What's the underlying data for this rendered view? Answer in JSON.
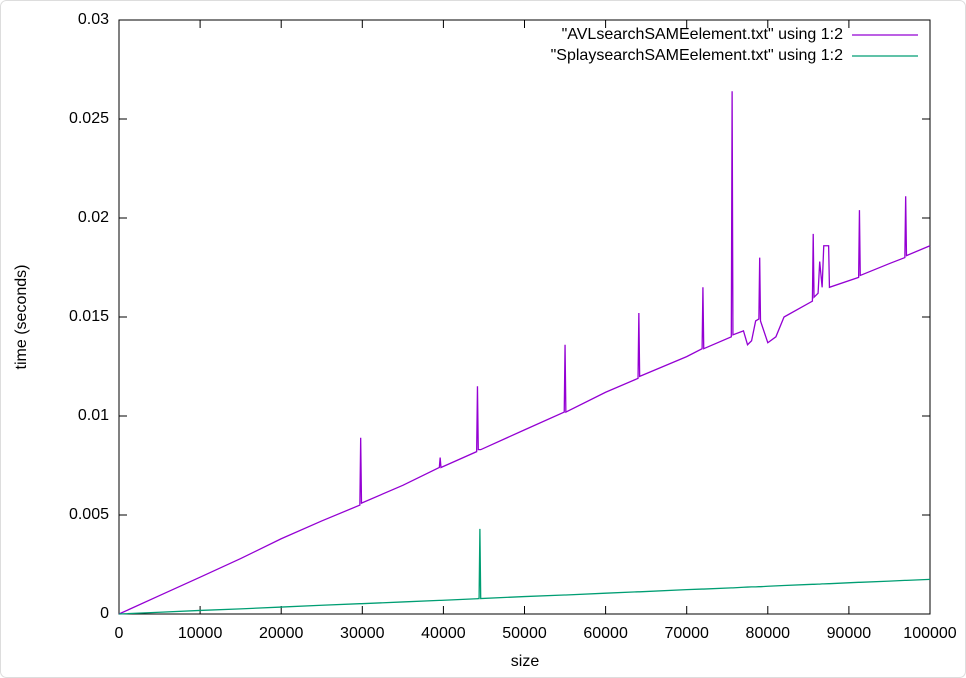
{
  "chart_data": {
    "type": "line",
    "xlabel": "size",
    "ylabel": "time (seconds)",
    "x": [
      0,
      5000,
      10000,
      15000,
      20000,
      25000,
      29700,
      29800,
      29900,
      35000,
      39500,
      39600,
      39700,
      44100,
      44200,
      44300,
      44400,
      44500,
      44600,
      50000,
      54900,
      55000,
      55100,
      60000,
      64000,
      64100,
      64200,
      70000,
      71900,
      72000,
      72100,
      75500,
      75600,
      75700,
      77000,
      77500,
      78000,
      78500,
      78900,
      79000,
      79100,
      80000,
      81000,
      82000,
      85500,
      85600,
      85700,
      86200,
      86400,
      86700,
      86900,
      87500,
      87600,
      91200,
      91300,
      91400,
      95000,
      96900,
      97000,
      97100,
      100000
    ],
    "series": [
      {
        "name": "\"AVLsearchSAMEelement.txt\" using 1:2",
        "color": "#9400d3",
        "values": [
          0,
          0.00093,
          0.00186,
          0.0028,
          0.0038,
          0.0047,
          0.0055,
          0.0089,
          0.0056,
          0.0065,
          0.0074,
          0.0079,
          0.0074,
          0.0082,
          0.0115,
          0.0083,
          0.0083,
          0.0083,
          0.0083,
          0.0093,
          0.0102,
          0.0136,
          0.0102,
          0.0112,
          0.0119,
          0.0152,
          0.012,
          0.013,
          0.0134,
          0.0165,
          0.0134,
          0.014,
          0.0264,
          0.0141,
          0.0143,
          0.0136,
          0.0138,
          0.0148,
          0.0149,
          0.018,
          0.0148,
          0.0137,
          0.014,
          0.015,
          0.0158,
          0.0192,
          0.016,
          0.0162,
          0.0178,
          0.0165,
          0.0186,
          0.0186,
          0.0165,
          0.017,
          0.0204,
          0.0171,
          0.0177,
          0.018,
          0.0211,
          0.0181,
          0.0186
        ]
      },
      {
        "name": "\"SplaysearchSAMEelement.txt\" using 1:2",
        "color": "#009e73",
        "values": [
          0,
          9e-05,
          0.00018,
          0.00026,
          0.00035,
          0.00044,
          0.00052,
          0.00052,
          0.00052,
          0.00061,
          0.00069,
          0.00069,
          0.00069,
          0.00077,
          0.00077,
          0.00078,
          0.00078,
          0.0043,
          0.00078,
          0.00088,
          0.00096,
          0.00096,
          0.00096,
          0.00105,
          0.00112,
          0.00112,
          0.00112,
          0.00123,
          0.00126,
          0.00126,
          0.00126,
          0.00132,
          0.00132,
          0.00132,
          0.00135,
          0.00136,
          0.00137,
          0.00137,
          0.00138,
          0.00138,
          0.00138,
          0.0014,
          0.00142,
          0.00144,
          0.0015,
          0.0015,
          0.0015,
          0.00151,
          0.00151,
          0.00152,
          0.00152,
          0.00153,
          0.00153,
          0.0016,
          0.0016,
          0.0016,
          0.00166,
          0.0017,
          0.0017,
          0.0017,
          0.00175
        ]
      }
    ],
    "xlim": [
      0,
      100000
    ],
    "xticks": [
      0,
      10000,
      20000,
      30000,
      40000,
      50000,
      60000,
      70000,
      80000,
      90000,
      100000
    ],
    "ylim": [
      0,
      0.03
    ],
    "yticks": [
      0,
      0.005,
      0.01,
      0.015,
      0.02,
      0.025,
      0.03
    ],
    "legend": "top-right",
    "grid": false
  }
}
